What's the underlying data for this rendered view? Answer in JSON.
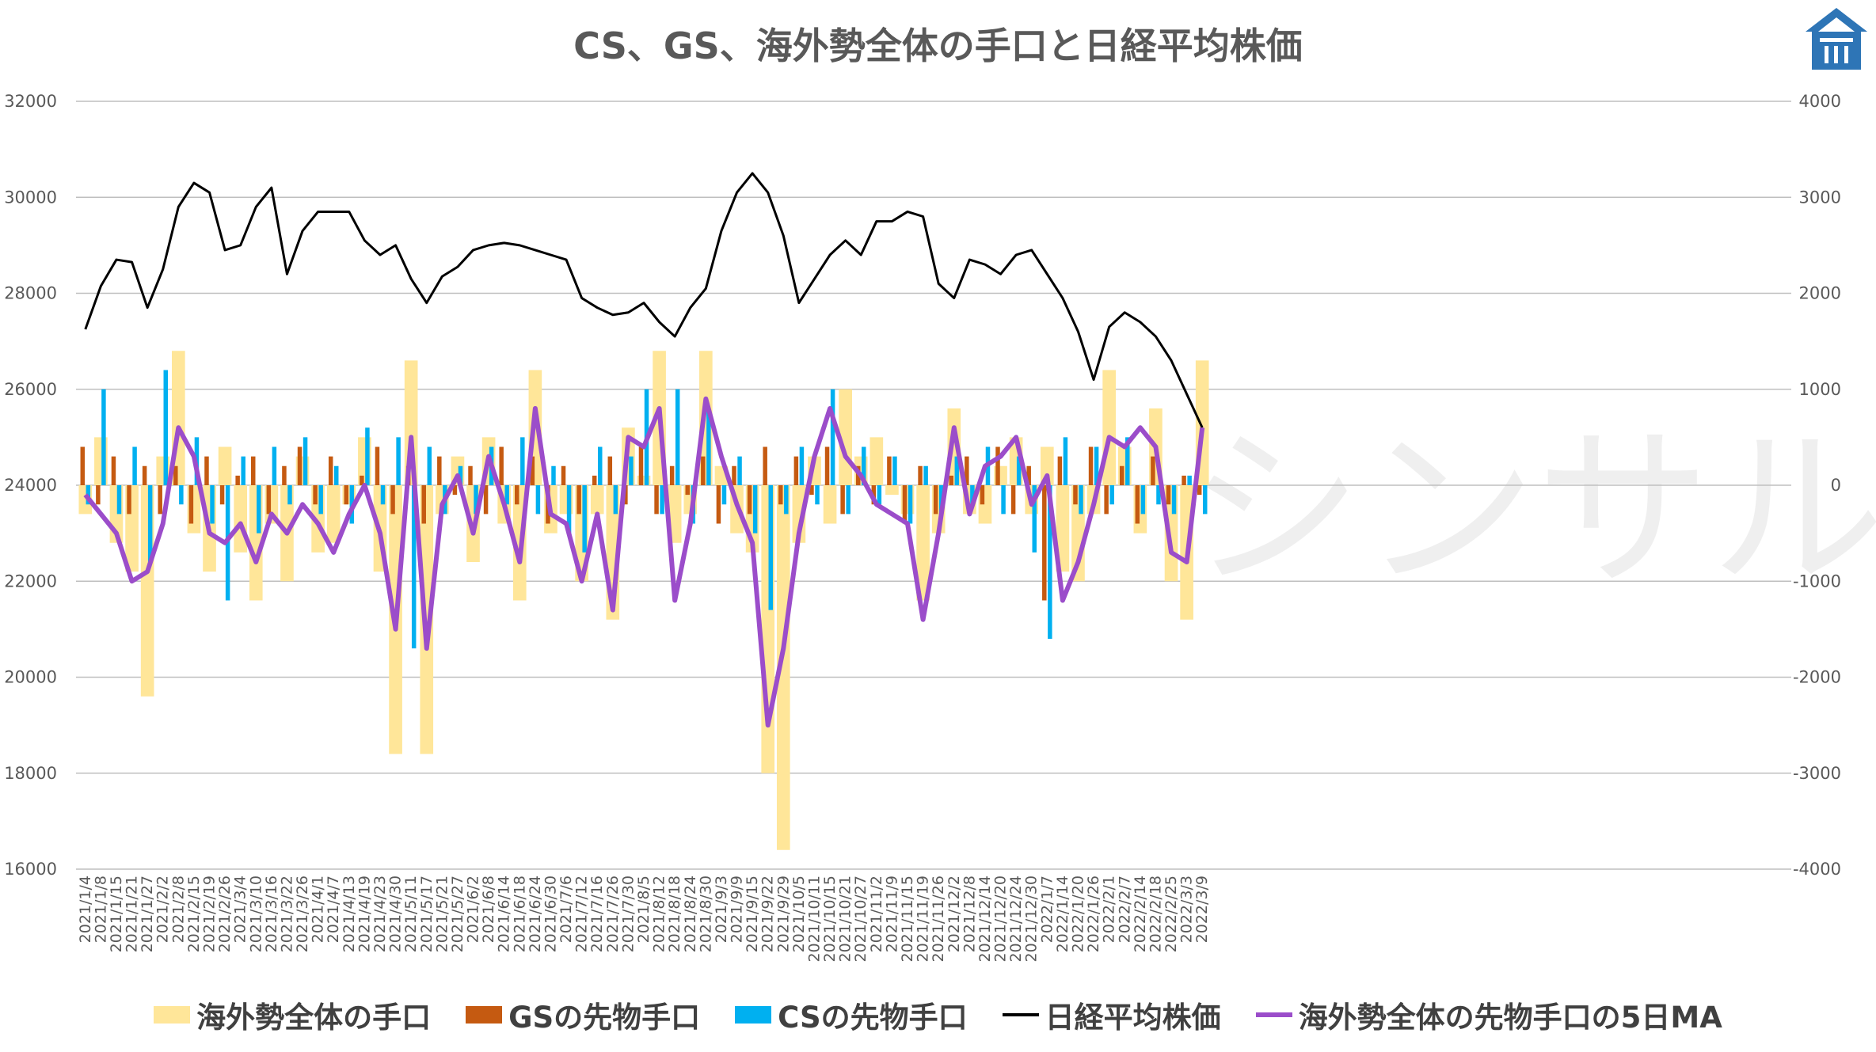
{
  "chart_data": {
    "type": "bar",
    "title": "CS、GS、海外勢全体の手口と日経平均株価",
    "left_axis": {
      "ylim": [
        16000,
        32000
      ],
      "ticks": [
        16000,
        18000,
        20000,
        22000,
        24000,
        26000,
        28000,
        30000,
        32000
      ]
    },
    "right_axis": {
      "ylim": [
        -4000,
        4000
      ],
      "ticks": [
        -4000,
        -3000,
        -2000,
        -1000,
        0,
        1000,
        2000,
        3000,
        4000
      ]
    },
    "grid": true,
    "legend_position": "bottom",
    "categories": [
      "2021/1/4",
      "2021/1/8",
      "2021/1/15",
      "2021/1/21",
      "2021/1/27",
      "2021/2/2",
      "2021/2/8",
      "2021/2/15",
      "2021/2/19",
      "2021/2/26",
      "2021/3/4",
      "2021/3/10",
      "2021/3/16",
      "2021/3/22",
      "2021/3/26",
      "2021/4/1",
      "2021/4/7",
      "2021/4/13",
      "2021/4/19",
      "2021/4/23",
      "2021/4/30",
      "2021/5/11",
      "2021/5/17",
      "2021/5/21",
      "2021/5/27",
      "2021/6/2",
      "2021/6/8",
      "2021/6/14",
      "2021/6/18",
      "2021/6/24",
      "2021/6/30",
      "2021/7/6",
      "2021/7/12",
      "2021/7/16",
      "2021/7/26",
      "2021/7/30",
      "2021/8/5",
      "2021/8/12",
      "2021/8/18",
      "2021/8/24",
      "2021/8/30",
      "2021/9/3",
      "2021/9/9",
      "2021/9/15",
      "2021/9/22",
      "2021/9/29",
      "2021/10/5",
      "2021/10/11",
      "2021/10/15",
      "2021/10/21",
      "2021/10/27",
      "2021/11/2",
      "2021/11/9",
      "2021/11/15",
      "2021/11/19",
      "2021/11/26",
      "2021/12/2",
      "2021/12/8",
      "2021/12/14",
      "2021/12/20",
      "2021/12/24",
      "2021/12/30",
      "2022/1/7",
      "2022/1/14",
      "2022/1/20",
      "2022/1/26",
      "2022/2/1",
      "2022/2/7",
      "2022/2/14",
      "2022/2/18",
      "2022/2/25",
      "2022/3/3",
      "2022/3/9"
    ],
    "series": [
      {
        "name": "海外勢全体の手口",
        "type": "bar",
        "axis": "right",
        "color": "#FFE699",
        "values": [
          -300,
          500,
          -600,
          -900,
          -2200,
          300,
          1400,
          -500,
          -900,
          400,
          -700,
          -1200,
          -400,
          -1000,
          300,
          -700,
          -600,
          -200,
          500,
          -900,
          -2800,
          1300,
          -2800,
          -300,
          300,
          -800,
          500,
          -400,
          -1200,
          1200,
          -500,
          -300,
          -1000,
          -300,
          -1400,
          600,
          100,
          1400,
          -600,
          -300,
          1400,
          200,
          -500,
          -700,
          -3000,
          -3800,
          -600,
          300,
          -400,
          1000,
          300,
          500,
          -100,
          -300,
          -1200,
          -500,
          800,
          -300,
          -400,
          200,
          500,
          -300,
          400,
          -900,
          -1000,
          -300,
          1200,
          400,
          -500,
          800,
          -1000,
          -1400,
          1300
        ]
      },
      {
        "name": "GSの先物手口",
        "type": "bar",
        "axis": "right",
        "color": "#C55A11",
        "values": [
          400,
          -200,
          300,
          -300,
          200,
          -300,
          200,
          -400,
          300,
          -200,
          100,
          300,
          -300,
          200,
          400,
          -200,
          300,
          -200,
          100,
          400,
          -300,
          200,
          -400,
          300,
          -100,
          200,
          -300,
          400,
          -200,
          300,
          -400,
          200,
          -300,
          100,
          300,
          -200,
          400,
          -300,
          200,
          -100,
          300,
          -400,
          200,
          -300,
          400,
          -200,
          300,
          -100,
          400,
          -300,
          200,
          -200,
          300,
          -400,
          200,
          -300,
          100,
          300,
          -200,
          400,
          -300,
          200,
          -1200,
          300,
          -200,
          400,
          -300,
          200,
          -400,
          300,
          -200,
          100,
          -100
        ]
      },
      {
        "name": "CSの先物手口",
        "type": "bar",
        "axis": "right",
        "color": "#00B0F0",
        "values": [
          -200,
          1000,
          -300,
          400,
          -800,
          1200,
          -200,
          500,
          -400,
          -1200,
          300,
          -500,
          400,
          -200,
          500,
          -300,
          200,
          -400,
          600,
          -200,
          500,
          -1700,
          400,
          -300,
          200,
          -300,
          400,
          -200,
          500,
          -300,
          200,
          -500,
          -700,
          400,
          -300,
          300,
          1000,
          -300,
          1000,
          -400,
          800,
          -200,
          300,
          -500,
          -1300,
          -300,
          400,
          -200,
          1000,
          -300,
          400,
          -200,
          300,
          -400,
          200,
          -300,
          300,
          -200,
          400,
          -300,
          300,
          -700,
          -1600,
          500,
          -300,
          400,
          -200,
          500,
          -300,
          -200,
          -300,
          100,
          -300
        ]
      },
      {
        "name": "日経平均株価",
        "type": "line",
        "axis": "left",
        "color": "#000000",
        "values": [
          27250,
          28150,
          28700,
          28650,
          27700,
          28500,
          29800,
          30300,
          30100,
          28900,
          29000,
          29800,
          30200,
          28400,
          29300,
          29700,
          29700,
          29700,
          29100,
          28800,
          29000,
          28300,
          27800,
          28350,
          28550,
          28900,
          29000,
          29050,
          29000,
          28900,
          28800,
          28700,
          27900,
          27700,
          27550,
          27600,
          27800,
          27400,
          27100,
          27700,
          28100,
          29300,
          30100,
          30500,
          30100,
          29200,
          27800,
          28300,
          28800,
          29100,
          28800,
          29500,
          29500,
          29700,
          29600,
          28200,
          27900,
          28700,
          28600,
          28400,
          28800,
          28900,
          28400,
          27900,
          27200,
          26200,
          27300,
          27600,
          27400,
          27100,
          26600,
          25900,
          25200
        ]
      },
      {
        "name": "海外勢全体の先物手口の5日MA",
        "type": "line",
        "axis": "right",
        "color": "#9B4DCA",
        "values": [
          -100,
          -300,
          -500,
          -1000,
          -900,
          -400,
          600,
          300,
          -500,
          -600,
          -400,
          -800,
          -300,
          -500,
          -200,
          -400,
          -700,
          -300,
          0,
          -500,
          -1500,
          500,
          -1700,
          -200,
          100,
          -500,
          300,
          -200,
          -800,
          800,
          -300,
          -400,
          -1000,
          -300,
          -1300,
          500,
          400,
          800,
          -1200,
          -400,
          900,
          300,
          -200,
          -600,
          -2500,
          -1700,
          -500,
          300,
          800,
          300,
          100,
          -200,
          -300,
          -400,
          -1400,
          -500,
          600,
          -300,
          200,
          300,
          500,
          -200,
          100,
          -1200,
          -800,
          -200,
          500,
          400,
          600,
          400,
          -700,
          -800,
          600
        ]
      }
    ]
  },
  "watermark": "シンサル",
  "logo_icon": "house-shield-icon"
}
